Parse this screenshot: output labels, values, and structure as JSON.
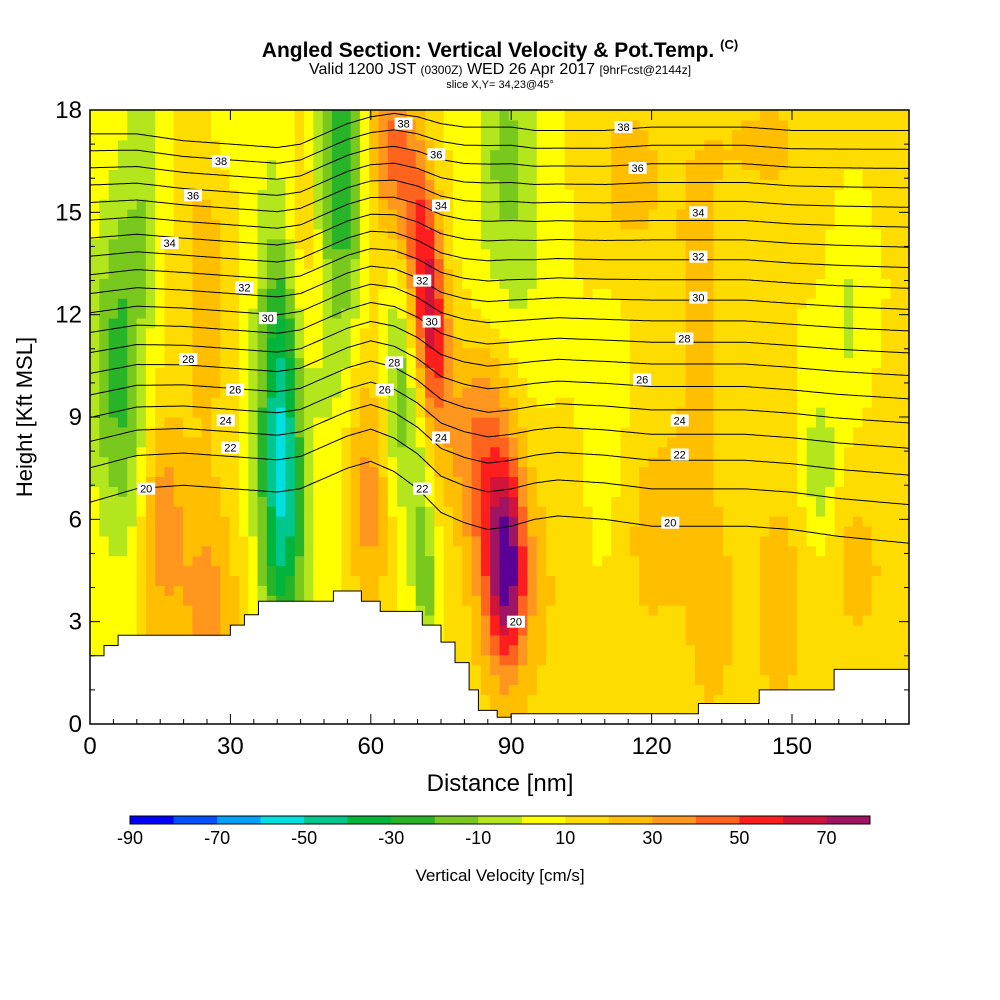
{
  "title": {
    "main": "Angled Section: Vertical Velocity & Pot.Temp.",
    "unit": "(C)",
    "valid_left": "Valid 1200 JST",
    "valid_z": "(0300Z)",
    "valid_right": "WED 26 Apr 2017",
    "fcst": "[9hrFcst@2144z]",
    "slice": "slice X,Y= 34,23@45°"
  },
  "chart_data": {
    "type": "heatmap",
    "xlabel": "Distance [nm]",
    "ylabel": "Height [Kft MSL]",
    "xlim": [
      0,
      175
    ],
    "ylim": [
      0,
      18
    ],
    "xticks": [
      0,
      30,
      60,
      90,
      120,
      150
    ],
    "yticks": [
      0,
      3,
      6,
      9,
      12,
      15,
      18
    ],
    "grid": false,
    "colorbar": {
      "label": "Vertical Velocity [cm/s]",
      "tick_labels": [
        "-90",
        "-70",
        "-50",
        "-30",
        "-10",
        "10",
        "30",
        "50",
        "70"
      ],
      "tick_values": [
        -90,
        -70,
        -50,
        -30,
        -10,
        10,
        30,
        50,
        70
      ],
      "boundaries": [
        -90,
        -80,
        -70,
        -60,
        -50,
        -40,
        -30,
        -20,
        -10,
        0,
        10,
        20,
        30,
        40,
        50,
        60,
        70,
        80
      ],
      "colors": [
        "#0000ff",
        "#0050ff",
        "#00a0ff",
        "#00e0e0",
        "#00c88c",
        "#00b43c",
        "#28b428",
        "#78c81e",
        "#b4e61e",
        "#ffff00",
        "#ffdc00",
        "#ffbe00",
        "#ff961e",
        "#ff641e",
        "#ff1e1e",
        "#d2143c",
        "#a01464",
        "#5a0096"
      ]
    },
    "terrain_kft": [
      [
        0,
        2.0
      ],
      [
        3,
        2.0
      ],
      [
        3,
        2.3
      ],
      [
        6,
        2.3
      ],
      [
        6,
        2.6
      ],
      [
        30,
        2.6
      ],
      [
        30,
        2.9
      ],
      [
        33,
        2.9
      ],
      [
        33,
        3.2
      ],
      [
        36,
        3.2
      ],
      [
        36,
        3.6
      ],
      [
        52,
        3.6
      ],
      [
        52,
        3.9
      ],
      [
        58,
        3.9
      ],
      [
        58,
        3.6
      ],
      [
        62,
        3.6
      ],
      [
        62,
        3.3
      ],
      [
        71,
        3.3
      ],
      [
        71,
        2.9
      ],
      [
        75,
        2.9
      ],
      [
        75,
        2.4
      ],
      [
        78,
        2.4
      ],
      [
        78,
        1.8
      ],
      [
        81,
        1.8
      ],
      [
        81,
        1.0
      ],
      [
        83,
        1.0
      ],
      [
        83,
        0.4
      ],
      [
        87,
        0.4
      ],
      [
        87,
        0.2
      ],
      [
        90,
        0.2
      ],
      [
        90,
        0.3
      ],
      [
        130,
        0.3
      ],
      [
        130,
        0.6
      ],
      [
        143,
        0.6
      ],
      [
        143,
        1.0
      ],
      [
        159,
        1.0
      ],
      [
        159,
        1.6
      ],
      [
        175,
        1.6
      ]
    ],
    "wind_field_cm_s": {
      "background": 10,
      "features": [
        {
          "x": 5,
          "y": 10.5,
          "sx": 4,
          "sy": 3.5,
          "value": -28
        },
        {
          "x": 9,
          "y": 9.5,
          "sx": 3,
          "sy": 6,
          "value": -12
        },
        {
          "x": 16,
          "y": 6.5,
          "sx": 3,
          "sy": 2,
          "value": 18
        },
        {
          "x": 13,
          "y": 4.0,
          "sx": 4,
          "sy": 3,
          "value": 12
        },
        {
          "x": 25,
          "y": 3.5,
          "sx": 5,
          "sy": 2,
          "value": 22
        },
        {
          "x": 25,
          "y": 13.0,
          "sx": 4,
          "sy": 5,
          "value": 14
        },
        {
          "x": 12,
          "y": 16.0,
          "sx": 2.5,
          "sy": 2.5,
          "value": -12
        },
        {
          "x": 28,
          "y": 17.5,
          "sx": 3,
          "sy": 1.5,
          "value": -10
        },
        {
          "x": 41,
          "y": 8.5,
          "sx": 3,
          "sy": 3.5,
          "value": -42
        },
        {
          "x": 40,
          "y": 10.0,
          "sx": 4,
          "sy": 5.5,
          "value": -20
        },
        {
          "x": 42,
          "y": 5.0,
          "sx": 4,
          "sy": 2,
          "value": -15
        },
        {
          "x": 45,
          "y": 14.5,
          "sx": 3,
          "sy": 3,
          "value": 16
        },
        {
          "x": 50,
          "y": 12.0,
          "sx": 2.5,
          "sy": 4,
          "value": -10
        },
        {
          "x": 55,
          "y": 15.0,
          "sx": 3,
          "sy": 4,
          "value": -28
        },
        {
          "x": 52,
          "y": 17.0,
          "sx": 3.5,
          "sy": 2,
          "value": -18
        },
        {
          "x": 58,
          "y": 9.0,
          "sx": 3,
          "sy": 3,
          "value": 14
        },
        {
          "x": 60,
          "y": 6.0,
          "sx": 3,
          "sy": 2,
          "value": 18
        },
        {
          "x": 64,
          "y": 17.0,
          "sx": 3,
          "sy": 1.8,
          "value": 32
        },
        {
          "x": 69,
          "y": 15.0,
          "sx": 2.5,
          "sy": 2,
          "value": 28
        },
        {
          "x": 72,
          "y": 13.0,
          "sx": 2.2,
          "sy": 2,
          "value": 36
        },
        {
          "x": 74,
          "y": 11.0,
          "sx": 2.2,
          "sy": 1.8,
          "value": 30
        },
        {
          "x": 66,
          "y": 10.0,
          "sx": 2,
          "sy": 2.5,
          "value": -25
        },
        {
          "x": 70,
          "y": 7.0,
          "sx": 2,
          "sy": 2,
          "value": -18
        },
        {
          "x": 72,
          "y": 4.0,
          "sx": 2,
          "sy": 1.5,
          "value": -22
        },
        {
          "x": 89,
          "y": 4.5,
          "sx": 2.5,
          "sy": 1.8,
          "value": 55
        },
        {
          "x": 86,
          "y": 6.5,
          "sx": 4,
          "sy": 3,
          "value": 32
        },
        {
          "x": 93,
          "y": 4.0,
          "sx": 6,
          "sy": 3,
          "value": 15
        },
        {
          "x": 80,
          "y": 8.5,
          "sx": 5,
          "sy": 2,
          "value": 18
        },
        {
          "x": 90,
          "y": 14.0,
          "sx": 6,
          "sy": 3.5,
          "value": -14
        },
        {
          "x": 89,
          "y": 17.0,
          "sx": 4,
          "sy": 2,
          "value": -14
        },
        {
          "x": 115,
          "y": 16.0,
          "sx": 6,
          "sy": 2,
          "value": 14
        },
        {
          "x": 145,
          "y": 17.0,
          "sx": 8,
          "sy": 1.5,
          "value": 12
        },
        {
          "x": 130,
          "y": 12.0,
          "sx": 5,
          "sy": 5,
          "value": 12
        },
        {
          "x": 111,
          "y": 9.0,
          "sx": 3,
          "sy": 3,
          "value": -6
        },
        {
          "x": 120,
          "y": 5.5,
          "sx": 5,
          "sy": 2.5,
          "value": 14
        },
        {
          "x": 133,
          "y": 3.0,
          "sx": 4,
          "sy": 2.5,
          "value": 14
        },
        {
          "x": 147,
          "y": 3.5,
          "sx": 4,
          "sy": 2.5,
          "value": 18
        },
        {
          "x": 156,
          "y": 7.5,
          "sx": 2.5,
          "sy": 1.5,
          "value": -20
        },
        {
          "x": 162,
          "y": 12.0,
          "sx": 2,
          "sy": 2,
          "value": -12
        },
        {
          "x": 164,
          "y": 4.5,
          "sx": 5,
          "sy": 2,
          "value": 14
        }
      ]
    },
    "theta_contours_C": {
      "levels": [
        20,
        21,
        22,
        23,
        24,
        25,
        26,
        27,
        28,
        29,
        30,
        31,
        32,
        33,
        34,
        35,
        36,
        37,
        38
      ],
      "reference_points": {
        "x_nm": [
          0,
          10,
          20,
          30,
          40,
          45,
          50,
          55,
          60,
          65,
          70,
          75,
          80,
          85,
          90,
          95,
          100,
          110,
          120,
          130,
          140,
          150,
          160,
          175
        ],
        "level_20_kft": [
          6.5,
          6.9,
          7.0,
          6.9,
          6.8,
          6.9,
          7.2,
          7.5,
          7.7,
          7.4,
          6.9,
          6.2,
          5.9,
          5.7,
          5.8,
          6.0,
          6.1,
          6.0,
          5.8,
          5.8,
          5.8,
          5.7,
          5.5,
          5.3
        ],
        "level_38_kft": [
          17.3,
          17.3,
          17.1,
          17.0,
          16.9,
          17.0,
          17.3,
          17.6,
          17.8,
          17.9,
          17.8,
          17.6,
          17.5,
          17.5,
          17.5,
          17.4,
          17.4,
          17.4,
          17.5,
          17.5,
          17.5,
          17.4,
          17.4,
          17.4
        ]
      },
      "labels": [
        {
          "text": "38",
          "x": 28,
          "y": 16.5
        },
        {
          "text": "36",
          "x": 22,
          "y": 15.5
        },
        {
          "text": "34",
          "x": 17,
          "y": 14.1
        },
        {
          "text": "32",
          "x": 33,
          "y": 12.8
        },
        {
          "text": "30",
          "x": 38,
          "y": 11.9
        },
        {
          "text": "28",
          "x": 21,
          "y": 10.7
        },
        {
          "text": "26",
          "x": 31,
          "y": 9.8
        },
        {
          "text": "24",
          "x": 29,
          "y": 8.9
        },
        {
          "text": "22",
          "x": 30,
          "y": 8.1
        },
        {
          "text": "20",
          "x": 12,
          "y": 6.9
        },
        {
          "text": "38",
          "x": 67,
          "y": 17.6
        },
        {
          "text": "36",
          "x": 74,
          "y": 16.7
        },
        {
          "text": "34",
          "x": 75,
          "y": 15.2
        },
        {
          "text": "32",
          "x": 71,
          "y": 13.0
        },
        {
          "text": "30",
          "x": 73,
          "y": 11.8
        },
        {
          "text": "28",
          "x": 65,
          "y": 10.6
        },
        {
          "text": "26",
          "x": 63,
          "y": 9.8
        },
        {
          "text": "24",
          "x": 75,
          "y": 8.4
        },
        {
          "text": "22",
          "x": 71,
          "y": 6.9
        },
        {
          "text": "20",
          "x": 91,
          "y": 3.0
        },
        {
          "text": "38",
          "x": 114,
          "y": 17.5
        },
        {
          "text": "36",
          "x": 117,
          "y": 16.3
        },
        {
          "text": "34",
          "x": 130,
          "y": 15.0
        },
        {
          "text": "32",
          "x": 130,
          "y": 13.7
        },
        {
          "text": "30",
          "x": 130,
          "y": 12.5
        },
        {
          "text": "28",
          "x": 127,
          "y": 11.3
        },
        {
          "text": "26",
          "x": 118,
          "y": 10.1
        },
        {
          "text": "24",
          "x": 126,
          "y": 8.9
        },
        {
          "text": "22",
          "x": 126,
          "y": 7.9
        },
        {
          "text": "20",
          "x": 124,
          "y": 5.9
        }
      ]
    }
  }
}
